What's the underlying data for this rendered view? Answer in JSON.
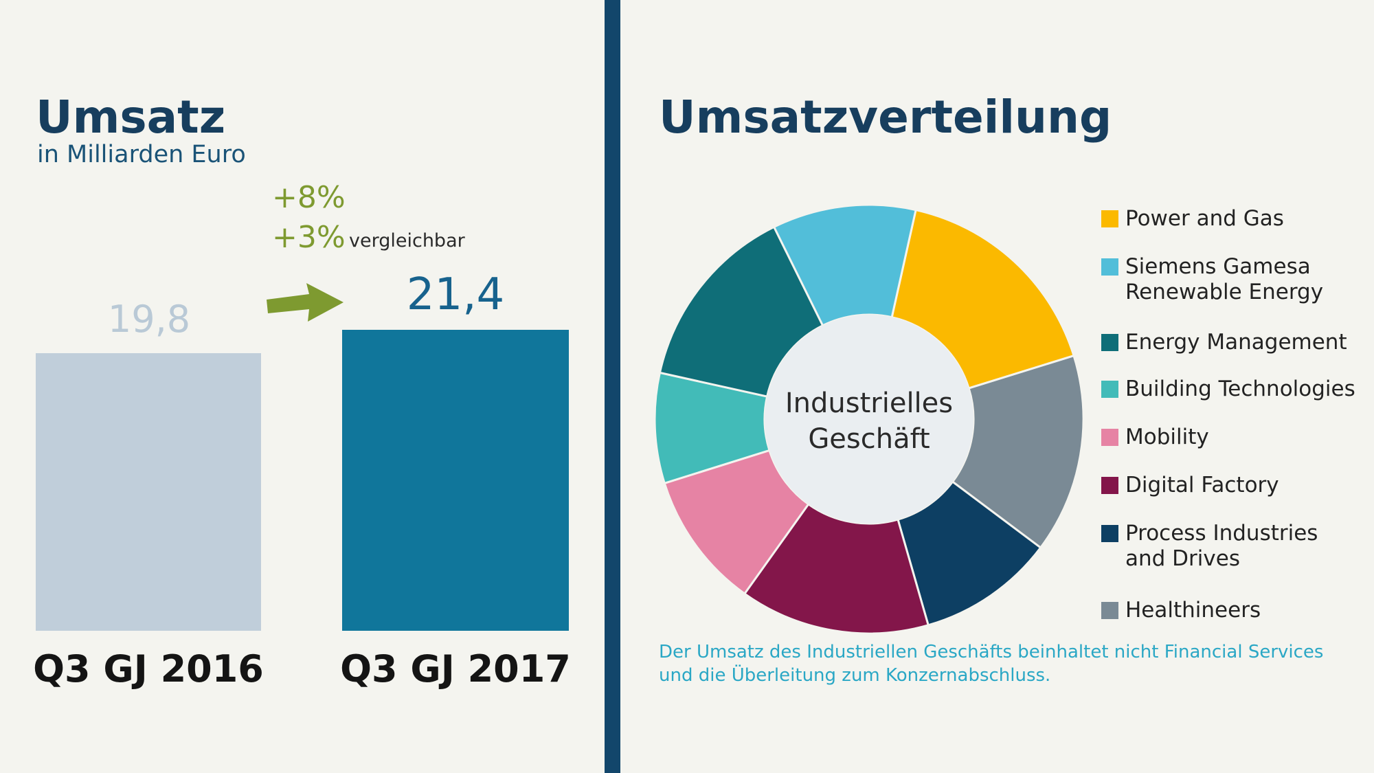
{
  "left": {
    "title": "Umsatz",
    "subtitle": "in Milliarden Euro",
    "growth_nominal": "+8%",
    "growth_comparable": "+3%",
    "comparable_label": "vergleichbar",
    "icon": "arrow-right-icon"
  },
  "right": {
    "title": "Umsatzverteilung",
    "center_label_line1": "Industrielles",
    "center_label_line2": "Geschäft",
    "footnote": "Der Umsatz des Industriellen Geschäfts beinhaltet nicht Financial Services und die Überleitung zum Konzernabschluss."
  },
  "colors": {
    "background": "#f4f4ef",
    "divider": "#12466b",
    "bar_2016": "#c0ceda",
    "bar_2017": "#10769b",
    "growth": "#7e9a30"
  },
  "chart_data": [
    {
      "type": "bar",
      "title": "Umsatz",
      "subtitle": "in Milliarden Euro",
      "categories": [
        "Q3 GJ 2016",
        "Q3 GJ 2017"
      ],
      "values": [
        19.8,
        21.4
      ],
      "value_labels": [
        "19,8",
        "21,4"
      ],
      "colors": [
        "#c0ceda",
        "#10769b"
      ],
      "annotations": [
        "+8%",
        "+3% vergleichbar"
      ],
      "ylim": [
        0,
        21.4
      ]
    },
    {
      "type": "pie",
      "title": "Umsatzverteilung",
      "center_label": "Industrielles Geschäft",
      "legend_position": "right",
      "slices": [
        {
          "label": "Power and Gas",
          "value": 16.7,
          "color": "#fbb900"
        },
        {
          "label": "Healthineers",
          "value": 15.0,
          "color": "#7a8a95"
        },
        {
          "label": "Process Industries\nand Drives",
          "value": 10.3,
          "color": "#0d3f63"
        },
        {
          "label": "Digital Factory",
          "value": 14.3,
          "color": "#83164a"
        },
        {
          "label": "Mobility",
          "value": 10.3,
          "color": "#e683a4"
        },
        {
          "label": "Building Technologies",
          "value": 8.3,
          "color": "#42bbb8"
        },
        {
          "label": "Energy Management",
          "value": 14.2,
          "color": "#0f6e78"
        },
        {
          "label": "Siemens Gamesa\nRenewable Energy",
          "value": 10.8,
          "color": "#52bed9"
        }
      ],
      "legend_order": [
        "Power and Gas",
        "Siemens Gamesa\nRenewable Energy",
        "Energy Management",
        "Building Technologies",
        "Mobility",
        "Digital Factory",
        "Process Industries\nand Drives",
        "Healthineers"
      ]
    }
  ]
}
